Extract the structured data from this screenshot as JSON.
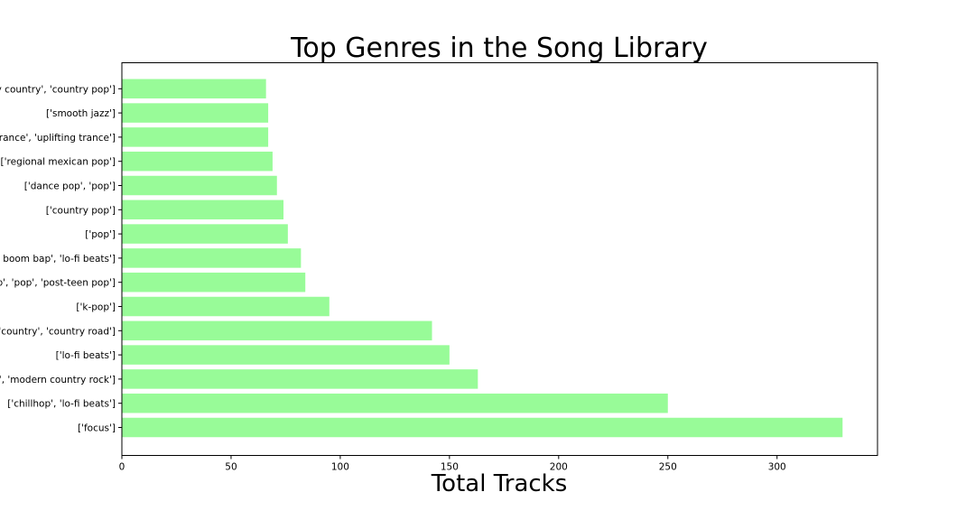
{
  "chart_data": {
    "type": "bar",
    "orientation": "horizontal",
    "title": "Top Genres in the Song Library",
    "xlabel": "Total Tracks",
    "ylabel": "",
    "xlim": [
      0,
      346
    ],
    "xticks": [
      0,
      50,
      100,
      150,
      200,
      250,
      300
    ],
    "grid": false,
    "bar_color": "#98fb98",
    "categories": [
      "['focus']",
      "['chillhop', 'lo-fi beats']",
      "d', 'modern country rock']",
      "['lo-fi beats']",
      " 'country', 'country road']",
      "['k-pop']",
      "op', 'pop', 'post-teen pop']",
      "zz boom bap', 'lo-fi beats']",
      "['pop']",
      "['country pop']",
      "['dance pop', 'pop']",
      "['regional mexican pop']",
      "trance', 'uplifting trance']",
      "['smooth jazz']",
      "ry country', 'country pop']"
    ],
    "values": [
      330,
      250,
      163,
      150,
      142,
      95,
      84,
      82,
      76,
      74,
      71,
      69,
      67,
      67,
      66
    ]
  }
}
